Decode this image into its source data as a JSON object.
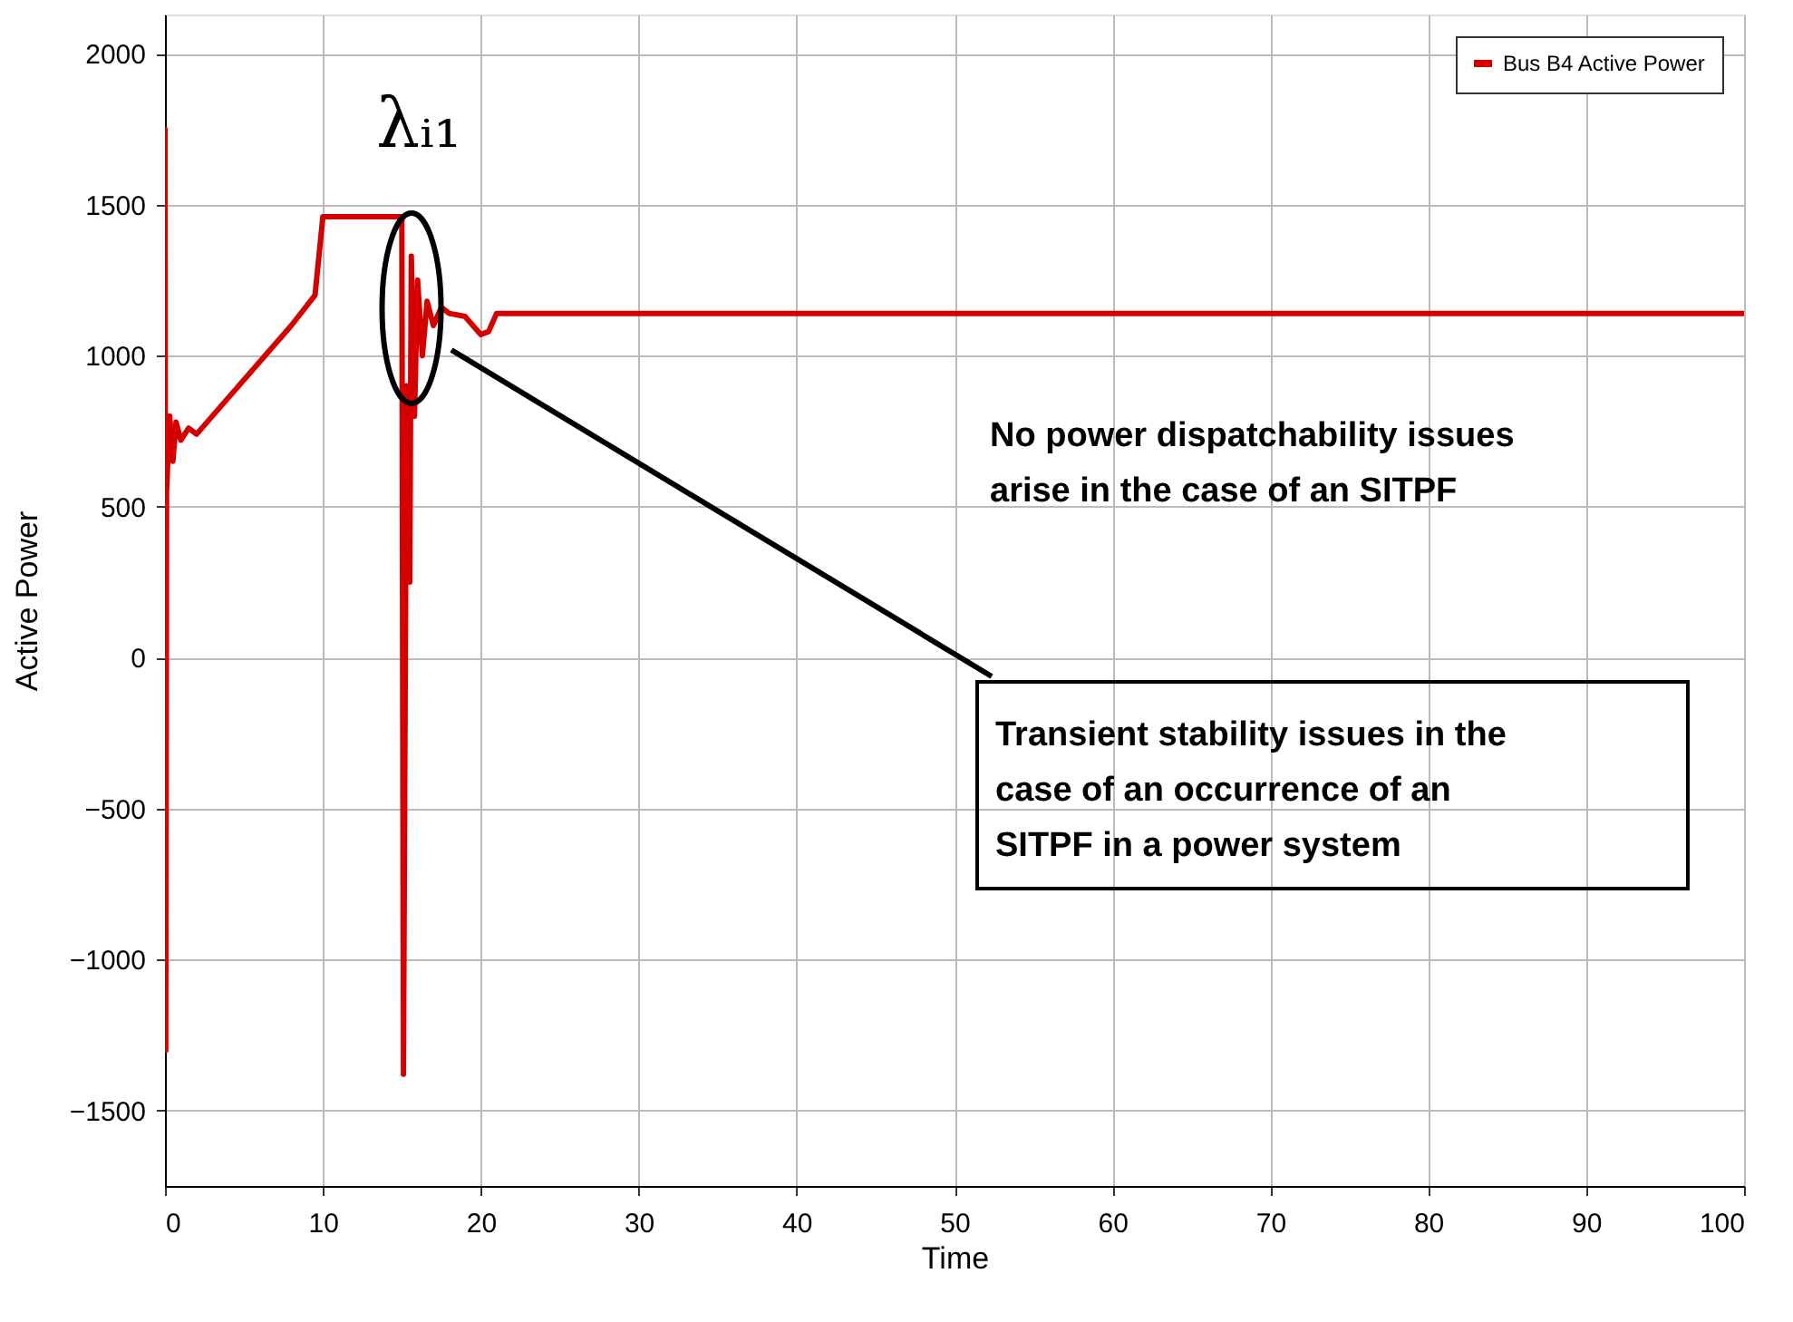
{
  "chart_data": {
    "type": "line",
    "xlabel": "Time",
    "ylabel": "Active Power",
    "x": [
      0,
      0.05,
      0.1,
      0.3,
      0.5,
      0.7,
      1,
      1.5,
      2,
      4,
      6,
      8,
      9.5,
      10,
      15,
      15.1,
      15.3,
      15.5,
      15.6,
      15.8,
      16,
      16.3,
      16.6,
      17,
      17.5,
      18,
      19,
      20,
      20.5,
      21,
      100
    ],
    "series": [
      {
        "name": "Bus B4 Active Power",
        "color": "#d40000",
        "values": [
          1750,
          -1300,
          550,
          800,
          650,
          780,
          720,
          760,
          740,
          860,
          980,
          1100,
          1200,
          1460,
          1460,
          -1380,
          900,
          250,
          1330,
          800,
          1250,
          1000,
          1180,
          1100,
          1160,
          1140,
          1130,
          1070,
          1080,
          1140,
          1140
        ]
      }
    ],
    "xlim": [
      0,
      100
    ],
    "xticks": [
      0,
      10,
      20,
      30,
      40,
      50,
      60,
      70,
      80,
      90,
      100
    ],
    "ylim": [
      -1750,
      2130
    ],
    "yticks": [
      -1500,
      -1000,
      -500,
      0,
      500,
      1000,
      1500,
      2000
    ],
    "grid": true,
    "legend": "top right",
    "marker": "none",
    "line_style": "solid",
    "annotations": [
      "λᵢ₁",
      "No power dispatchability issues\n arise in the case of an SITPF",
      "Transient stability issues in the\n case of an occurrence of  an\n SITPF in a power system"
    ]
  }
}
